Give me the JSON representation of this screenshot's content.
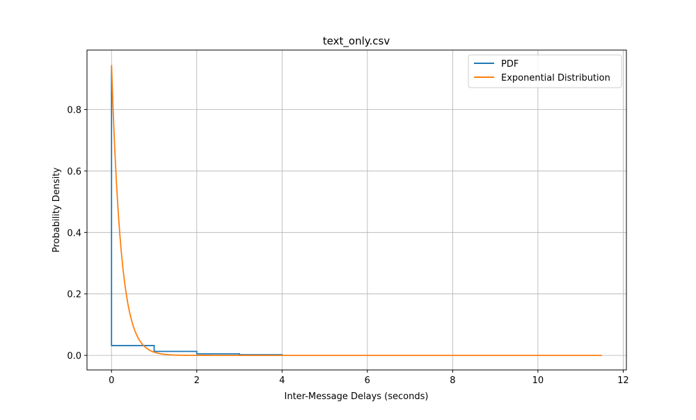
{
  "chart_data": {
    "type": "line",
    "title": "text_only.csv",
    "xlabel": "Inter-Message Delays (seconds)",
    "ylabel": "Probability Density",
    "xlim": [
      -0.575,
      12.075
    ],
    "ylim": [
      -0.0473,
      0.9935
    ],
    "xticks": [
      0,
      2,
      4,
      6,
      8,
      10,
      12
    ],
    "xtick_labels": [
      "0",
      "2",
      "4",
      "6",
      "8",
      "10",
      "12"
    ],
    "yticks": [
      0.0,
      0.2,
      0.4,
      0.6,
      0.8
    ],
    "ytick_labels": [
      "0.0",
      "0.2",
      "0.4",
      "0.6",
      "0.8"
    ],
    "grid": true,
    "legend_position": "top-right",
    "series": [
      {
        "name": "PDF",
        "color": "#1f77b4",
        "style": "step",
        "points": [
          [
            0,
            0.94
          ],
          [
            0,
            0.032
          ],
          [
            1,
            0.032
          ],
          [
            1,
            0.013
          ],
          [
            2,
            0.013
          ],
          [
            2,
            0.005
          ],
          [
            3,
            0.005
          ],
          [
            3,
            0.002
          ],
          [
            4,
            0.002
          ],
          [
            4,
            0.0
          ]
        ]
      },
      {
        "name": "Exponential Distribution",
        "color": "#ff7f0e",
        "style": "line",
        "rate": 0.945,
        "scale": 4.5,
        "x_start": 0,
        "x_end": 11.5
      }
    ]
  }
}
